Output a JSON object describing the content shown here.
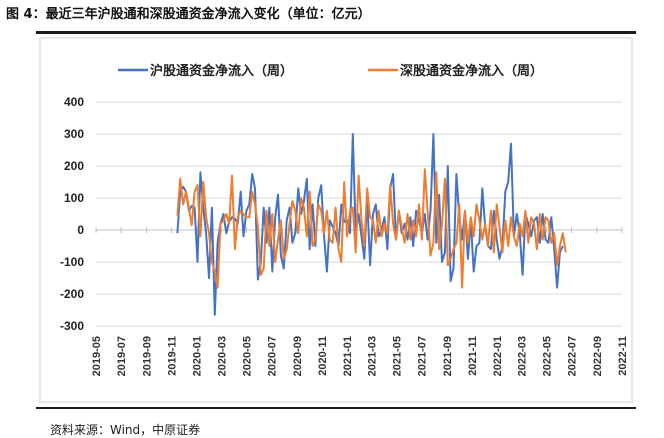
{
  "header": {
    "figure_title": "图 4：最近三年沪股通和深股通资金净流入变化（单位：亿元）"
  },
  "footer": {
    "source": "资料来源：Wind，中原证券"
  },
  "chart_data": {
    "type": "line",
    "title": "",
    "xlabel": "",
    "ylabel": "",
    "ylim": [
      -300,
      400
    ],
    "yticks": [
      -300,
      -200,
      -100,
      0,
      100,
      200,
      300,
      400
    ],
    "grid": "horizontal",
    "legend_position": "top",
    "x_tick_labels": [
      "2019-05",
      "2019-07",
      "2019-09",
      "2019-11",
      "2020-01",
      "2020-03",
      "2020-05",
      "2020-07",
      "2020-09",
      "2020-11",
      "2021-01",
      "2021-03",
      "2021-05",
      "2021-07",
      "2021-09",
      "2021-11",
      "2022-01",
      "2022-03",
      "2022-05",
      "2022-07",
      "2022-09",
      "2022-11"
    ],
    "x_range_months": [
      "2019-05",
      "2022-11"
    ],
    "series": [
      {
        "name": "沪股通资金净流入（周）",
        "color": "#4472C4",
        "start_date": "2019-11-15",
        "interval_days": 7,
        "values": [
          -10,
          120,
          135,
          120,
          60,
          75,
          70,
          -100,
          180,
          70,
          -10,
          -150,
          70,
          -265,
          -40,
          20,
          50,
          -10,
          25,
          40,
          35,
          20,
          120,
          -20,
          60,
          80,
          175,
          130,
          -155,
          -100,
          70,
          -40,
          70,
          -130,
          40,
          110,
          -80,
          -120,
          30,
          70,
          -40,
          -10,
          130,
          50,
          90,
          160,
          -60,
          80,
          -50,
          100,
          140,
          -20,
          -130,
          30,
          10,
          -10,
          -50,
          80,
          25,
          30,
          -10,
          300,
          -10,
          50,
          -20,
          -90,
          100,
          -110,
          50,
          80,
          -20,
          0,
          40,
          -60,
          130,
          175,
          -30,
          60,
          -10,
          20,
          -30,
          40,
          -50,
          60,
          30,
          -10,
          50,
          -30,
          60,
          300,
          -40,
          110,
          -100,
          -70,
          200,
          -160,
          -120,
          175,
          40,
          -30,
          60,
          -90,
          30,
          -130,
          -50,
          -40,
          130,
          10,
          -50,
          -60,
          60,
          -30,
          -90,
          -50,
          120,
          150,
          270,
          -20,
          50,
          -10,
          -140,
          50,
          20,
          -20,
          30,
          40,
          -40,
          50,
          -30,
          -40,
          40,
          -60,
          -180,
          -70,
          -50
        ]
      },
      {
        "name": "深股通资金净流入（周）",
        "color": "#ED7D31",
        "start_date": "2019-11-15",
        "interval_days": 7,
        "values": [
          45,
          160,
          80,
          120,
          70,
          15,
          120,
          140,
          -20,
          150,
          40,
          -10,
          -100,
          -130,
          -180,
          20,
          30,
          50,
          20,
          170,
          -60,
          40,
          60,
          50,
          40,
          40,
          120,
          80,
          10,
          -140,
          -120,
          60,
          -50,
          50,
          -100,
          -30,
          30,
          -90,
          -60,
          20,
          90,
          60,
          -10,
          100,
          70,
          -20,
          120,
          -50,
          -30,
          80,
          60,
          -10,
          60,
          -30,
          -40,
          70,
          -60,
          -100,
          150,
          -20,
          60,
          70,
          -70,
          170,
          30,
          -50,
          130,
          40,
          30,
          -40,
          60,
          -20,
          20,
          -10,
          140,
          20,
          -30,
          60,
          10,
          -40,
          50,
          -30,
          30,
          -20,
          80,
          -30,
          190,
          60,
          -80,
          -40,
          180,
          -60,
          20,
          160,
          -110,
          -90,
          -60,
          -40,
          80,
          -180,
          60,
          -40,
          40,
          -20,
          80,
          30,
          -30,
          20,
          -50,
          60,
          -70,
          80,
          10,
          -70,
          30,
          -50,
          40,
          -20,
          -50,
          20,
          -20,
          60,
          -40,
          40,
          20,
          -60,
          50,
          -30,
          40,
          30,
          -40,
          -10,
          -110,
          -50,
          -10,
          -70
        ]
      }
    ]
  }
}
